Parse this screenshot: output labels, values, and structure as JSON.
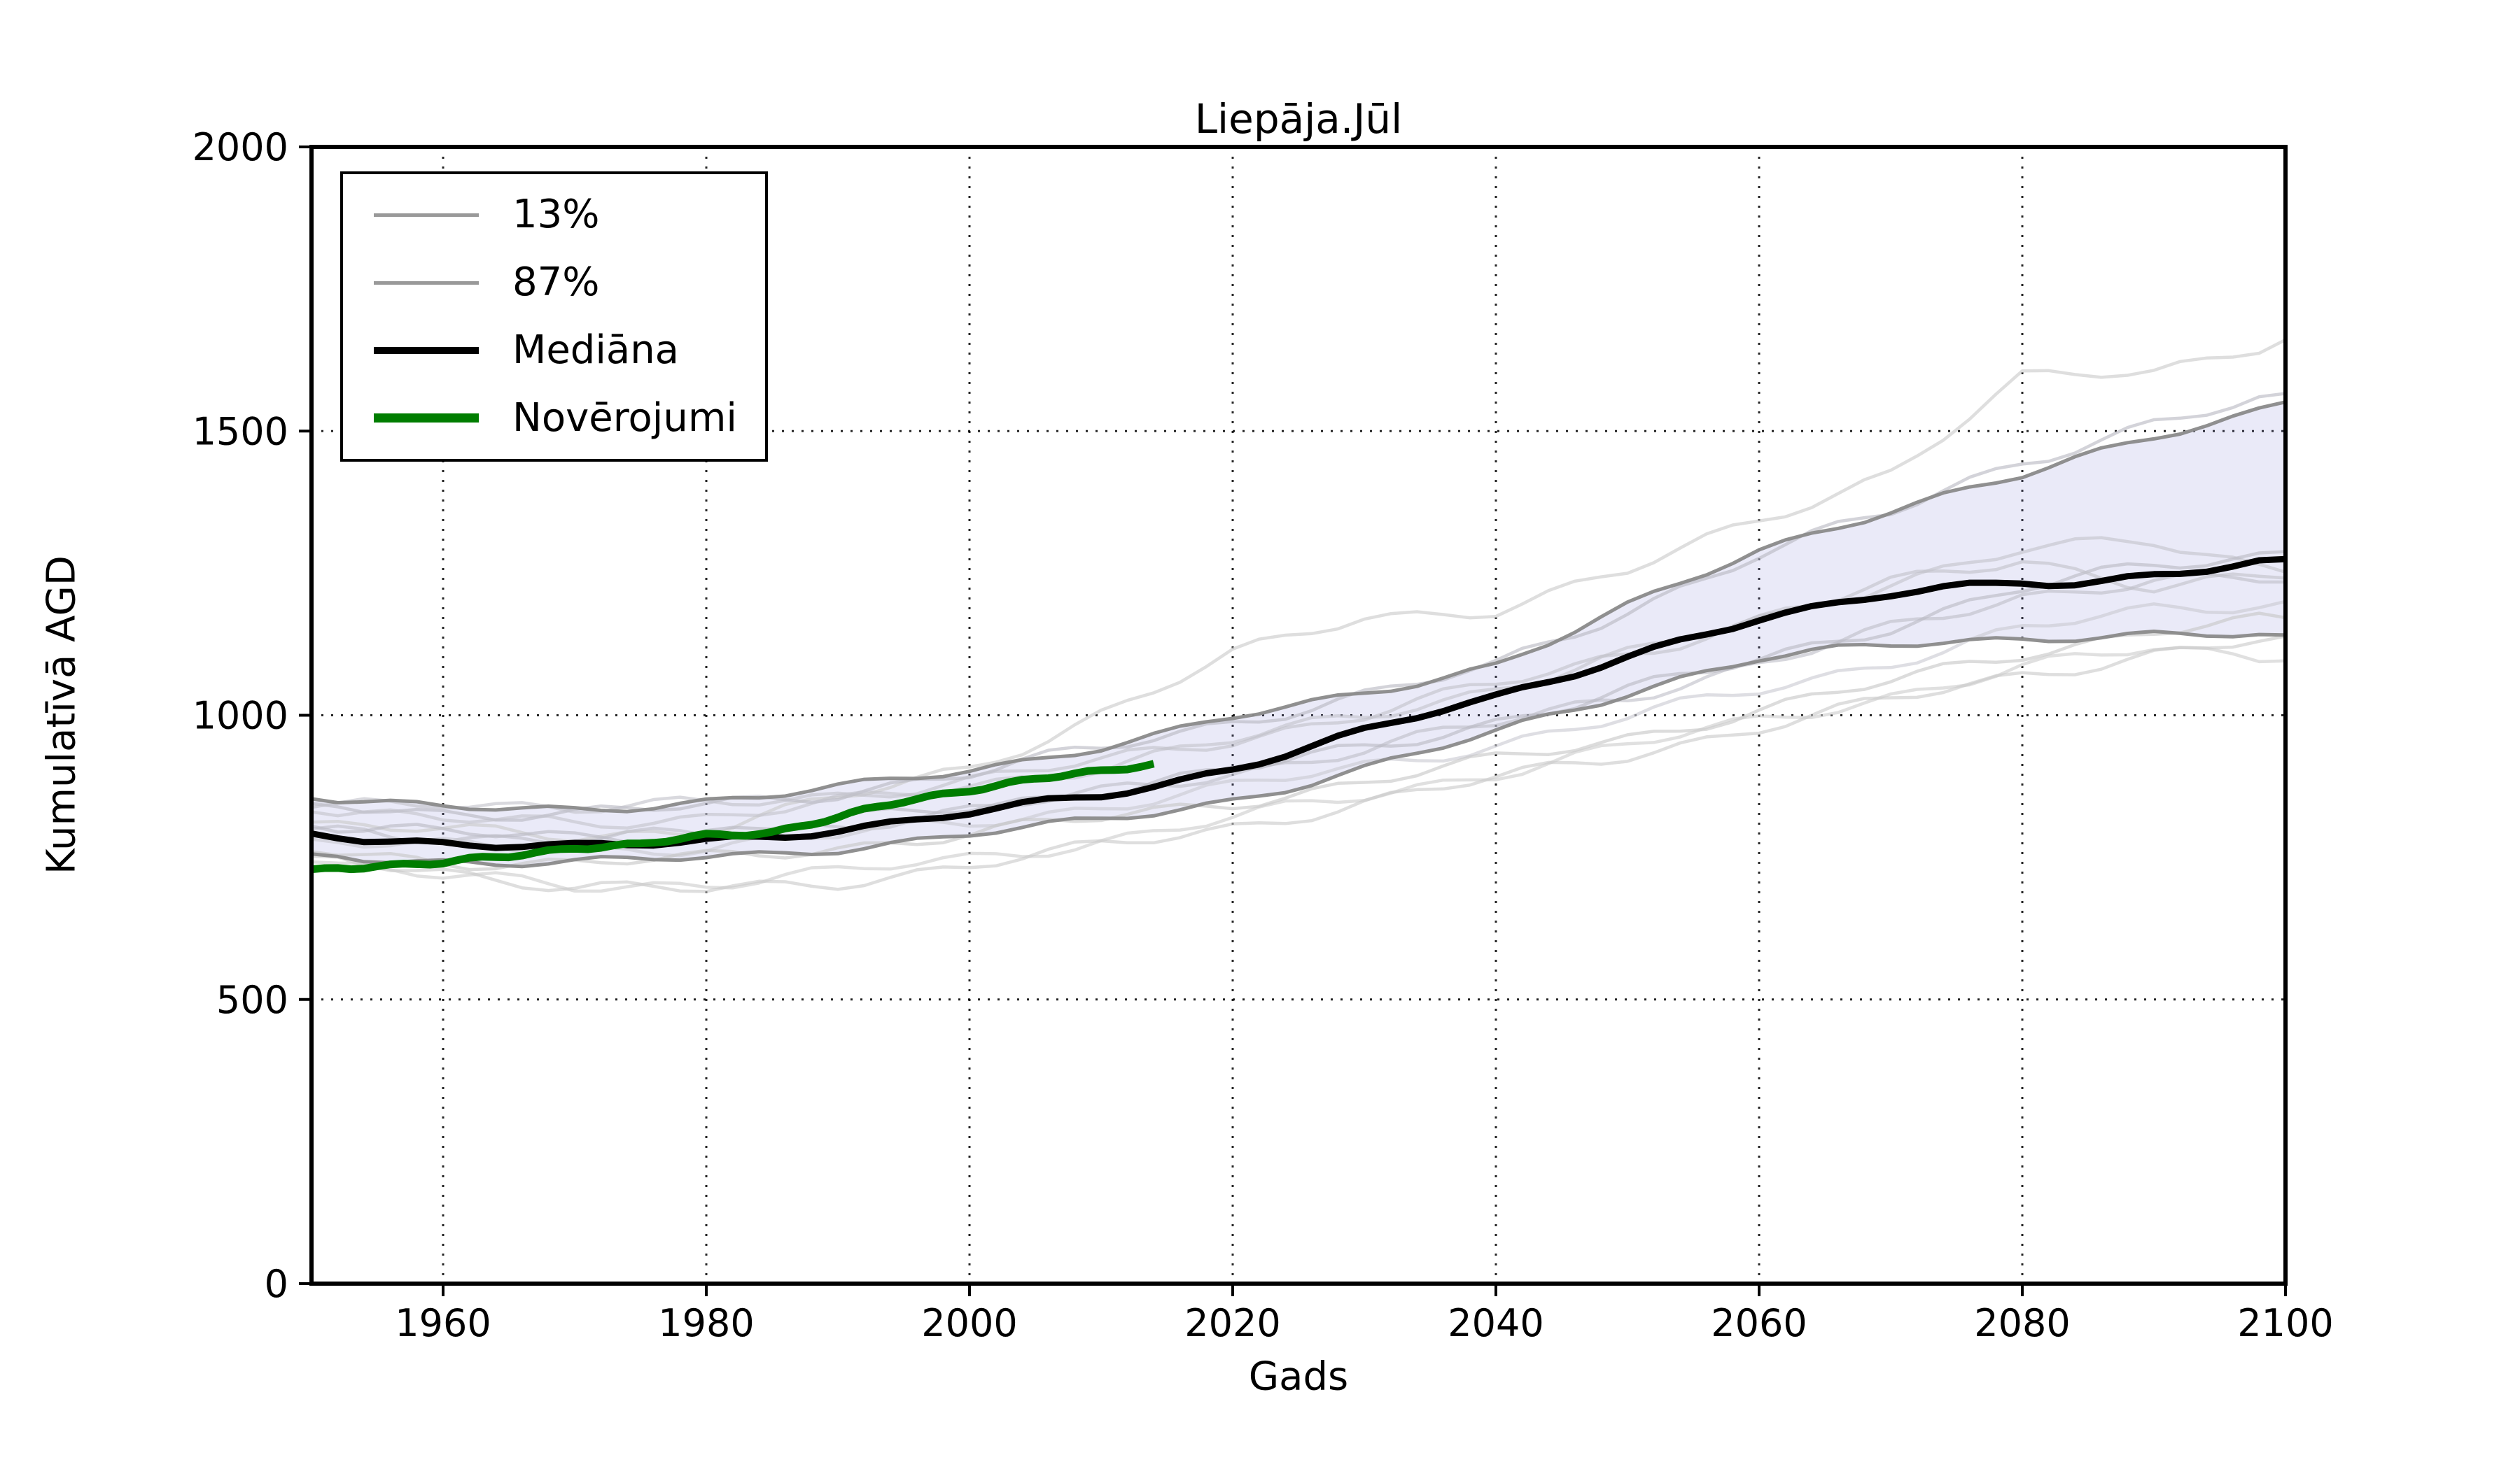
{
  "figure": {
    "background": "#ffffff"
  },
  "chart_data": {
    "type": "line",
    "title": "Liepāja.Jūl",
    "xlabel": "Gads",
    "ylabel": "Kumulatīvā AGD",
    "xlim": [
      1950,
      2100
    ],
    "ylim": [
      0,
      2000
    ],
    "xticks": [
      1960,
      1980,
      2000,
      2020,
      2040,
      2060,
      2080,
      2100
    ],
    "yticks": [
      0,
      500,
      1000,
      1500,
      2000
    ],
    "grid": true,
    "grid_style": "dotted",
    "legend_position": "upper-left",
    "axis_color": "#000000",
    "years_5yr": [
      1950,
      1955,
      1960,
      1965,
      1970,
      1975,
      1980,
      1985,
      1990,
      1995,
      2000,
      2005,
      2010,
      2015,
      2020,
      2025,
      2030,
      2035,
      2040,
      2045,
      2050,
      2055,
      2060,
      2065,
      2070,
      2075,
      2080,
      2085,
      2090,
      2095,
      2100
    ],
    "years_10yr": [
      1950,
      1960,
      1970,
      1980,
      1990,
      2000,
      2010,
      2020,
      2030,
      2040,
      2050,
      2060,
      2070,
      2080,
      2090,
      2100
    ],
    "percentile_band": {
      "lower_label": "13%",
      "upper_label": "87%",
      "fill_color": "rgba(124,124,214,0.16)",
      "edge_color": "#8a8a8a",
      "edge_width": 5,
      "years_key": "years_5yr",
      "p13": [
        756,
        748,
        744,
        740,
        741,
        744,
        750,
        757,
        766,
        777,
        790,
        802,
        816,
        832,
        852,
        877,
        905,
        937,
        970,
        1006,
        1040,
        1072,
        1100,
        1112,
        1122,
        1130,
        1136,
        1140,
        1142,
        1140,
        1138
      ],
      "p87": [
        853,
        843,
        838,
        834,
        836,
        841,
        849,
        858,
        872,
        887,
        905,
        924,
        945,
        968,
        995,
        1016,
        1040,
        1064,
        1090,
        1138,
        1190,
        1240,
        1290,
        1328,
        1362,
        1392,
        1420,
        1455,
        1490,
        1520,
        1552
      ]
    },
    "median": {
      "label": "Mediāna",
      "color": "#000000",
      "width": 9,
      "years_key": "years_5yr",
      "values": [
        792,
        780,
        777,
        772,
        768,
        771,
        779,
        788,
        800,
        813,
        828,
        843,
        858,
        880,
        908,
        940,
        972,
        1002,
        1030,
        1068,
        1105,
        1140,
        1168,
        1188,
        1212,
        1228,
        1238,
        1232,
        1246,
        1256,
        1272
      ]
    },
    "observations": {
      "label": "Novērojumi",
      "color": "#007d00",
      "width": 11,
      "years": [
        1950,
        1955,
        1960,
        1965,
        1970,
        1975,
        1980,
        1985,
        1990,
        1995,
        2000,
        2005,
        2010,
        2014
      ],
      "values": [
        729,
        736,
        740,
        752,
        768,
        772,
        788,
        795,
        820,
        848,
        870,
        888,
        900,
        915
      ]
    },
    "ensemble": {
      "width": 4.5,
      "opacity": 0.6,
      "years_key": "years_10yr",
      "members": [
        {
          "name": "ensemble-1",
          "color": "#c8c8c8",
          "values": [
            812,
            795,
            788,
            800,
            852,
            905,
            1005,
            1105,
            1172,
            1188,
            1252,
            1342,
            1430,
            1592,
            1602,
            1665
          ]
        },
        {
          "name": "ensemble-2",
          "color": "#b6b6c0",
          "values": [
            845,
            830,
            825,
            840,
            865,
            898,
            940,
            990,
            1035,
            1085,
            1185,
            1285,
            1355,
            1448,
            1515,
            1560
          ]
        },
        {
          "name": "ensemble-3",
          "color": "#c2c2ca",
          "values": [
            830,
            815,
            812,
            822,
            845,
            875,
            912,
            955,
            1000,
            1048,
            1105,
            1168,
            1235,
            1290,
            1305,
            1255
          ]
        },
        {
          "name": "ensemble-4",
          "color": "#bcbcc6",
          "values": [
            800,
            788,
            780,
            790,
            808,
            832,
            862,
            900,
            940,
            985,
            1035,
            1090,
            1150,
            1210,
            1240,
            1235
          ]
        },
        {
          "name": "ensemble-5",
          "color": "#c8c8d0",
          "values": [
            782,
            768,
            762,
            770,
            788,
            812,
            840,
            872,
            910,
            950,
            995,
            1045,
            1095,
            1150,
            1185,
            1200
          ]
        },
        {
          "name": "ensemble-6",
          "color": "#c4c4c4",
          "values": [
            760,
            745,
            738,
            748,
            768,
            792,
            818,
            848,
            882,
            920,
            962,
            1008,
            1058,
            1110,
            1150,
            1168
          ]
        },
        {
          "name": "ensemble-7",
          "color": "#cccccc",
          "values": [
            742,
            715,
            700,
            705,
            722,
            748,
            780,
            818,
            858,
            900,
            945,
            990,
            1035,
            1082,
            1118,
            1102
          ]
        },
        {
          "name": "ensemble-8",
          "color": "#c8c8c8",
          "values": [
            752,
            728,
            695,
            692,
            708,
            735,
            768,
            805,
            845,
            888,
            932,
            978,
            1025,
            1072,
            1108,
            1135
          ]
        },
        {
          "name": "ensemble-9",
          "color": "#b8b8c2",
          "values": [
            805,
            792,
            785,
            795,
            812,
            838,
            868,
            902,
            942,
            990,
            1042,
            1098,
            1158,
            1222,
            1262,
            1288
          ]
        },
        {
          "name": "ensemble-10",
          "color": "#c0c0c8",
          "values": [
            838,
            852,
            835,
            842,
            860,
            885,
            918,
            958,
            1002,
            1052,
            1108,
            1168,
            1230,
            1275,
            1228,
            1242
          ]
        }
      ]
    },
    "legend": {
      "items": [
        {
          "label": "13%",
          "color": "#999999",
          "thickness": 5
        },
        {
          "label": "87%",
          "color": "#999999",
          "thickness": 5
        },
        {
          "label": "Mediāna",
          "color": "#000000",
          "thickness": 10
        },
        {
          "label": "Novērojumi",
          "color": "#007d00",
          "thickness": 13
        }
      ]
    }
  }
}
